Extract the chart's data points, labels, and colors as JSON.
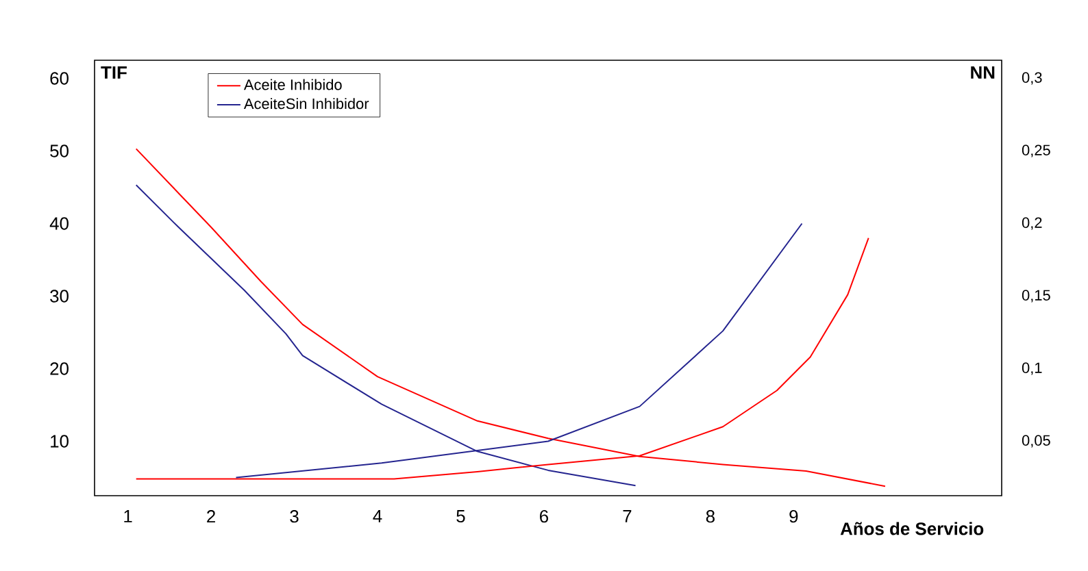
{
  "chart_data": {
    "type": "line",
    "xlabel": "Años de Servicio",
    "ylabel": "TIF",
    "y2label": "NN",
    "xlim": [
      0.6,
      11.5
    ],
    "xticks": [
      1,
      2,
      3,
      4,
      5,
      6,
      7,
      8,
      9
    ],
    "ylim": [
      2.5,
      62.5
    ],
    "yticks": [
      10,
      20,
      30,
      40,
      50,
      60
    ],
    "y2lim": [
      0.0125,
      0.3125
    ],
    "y2ticks": [
      {
        "value": 0.05,
        "label": "0,05"
      },
      {
        "value": 0.1,
        "label": "0,1"
      },
      {
        "value": 0.15,
        "label": "0,15"
      },
      {
        "value": 0.2,
        "label": "0,2"
      },
      {
        "value": 0.25,
        "label": "0,25"
      },
      {
        "value": 0.3,
        "label": "0,3"
      }
    ],
    "legend": "top left",
    "marker": "none",
    "line_style": "solid",
    "series": [
      {
        "name": "Aceite Inhibido",
        "color": "#ff0000",
        "x": [
          1.1,
          2.0,
          2.6,
          3.1,
          4.0,
          5.2,
          6.05,
          7.15,
          8.15,
          9.15,
          10.1
        ],
        "values": [
          50.3,
          39.5,
          32,
          26.1,
          18.9,
          12.8,
          10.4,
          7.9,
          6.8,
          5.9,
          3.8
        ]
      },
      {
        "name": "AceiteSin Inhibidor",
        "color": "#24248f",
        "x": [
          1.1,
          1.6,
          2.4,
          2.9,
          3.1,
          4.05,
          5.2,
          6.05,
          7.1
        ],
        "values": [
          45.3,
          39.6,
          30.8,
          24.8,
          21.8,
          15.1,
          8.6,
          6.0,
          3.9
        ]
      },
      {
        "color": "#ff0000",
        "axis": "y2",
        "x": [
          1.1,
          4.2,
          5.2,
          6.05,
          7.15,
          8.15,
          8.8,
          9.2,
          9.65,
          9.9
        ],
        "values": [
          0.024,
          0.024,
          0.029,
          0.034,
          0.04,
          0.06,
          0.085,
          0.108,
          0.151,
          0.19
        ]
      },
      {
        "color": "#24248f",
        "axis": "y2",
        "x": [
          2.3,
          4.05,
          6.05,
          7.15,
          8.15,
          9.1
        ],
        "values": [
          0.025,
          0.035,
          0.05,
          0.074,
          0.126,
          0.2
        ]
      }
    ]
  }
}
